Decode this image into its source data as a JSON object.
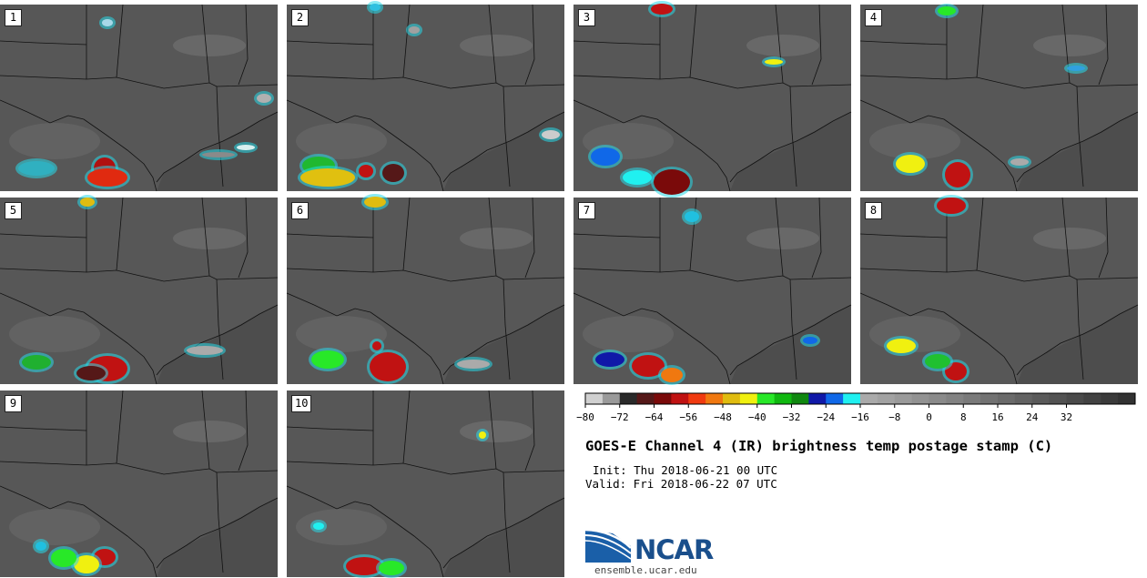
{
  "panels": [
    "1",
    "2",
    "3",
    "4",
    "5",
    "6",
    "7",
    "8",
    "9",
    "10"
  ],
  "colorbar": {
    "colors": [
      "#d0d0d0",
      "#9a9a9a",
      "#2a2a2a",
      "#551818",
      "#7a0a0a",
      "#c01212",
      "#f03a10",
      "#f07810",
      "#e0bc10",
      "#f0f010",
      "#28e828",
      "#10b810",
      "#108810",
      "#1018a8",
      "#1068e8",
      "#20f0f0",
      "#aaaaaa",
      "#a2a2a2",
      "#9a9a9a",
      "#929292",
      "#8a8a8a",
      "#828282",
      "#7a7a7a",
      "#727272",
      "#6a6a6a",
      "#626262",
      "#5a5a5a",
      "#525252",
      "#4a4a4a",
      "#424242",
      "#3a3a3a",
      "#323232"
    ],
    "ticks": [
      "−80",
      "−72",
      "−64",
      "−56",
      "−48",
      "−40",
      "−32",
      "−24",
      "−16",
      "−8",
      "0",
      "8",
      "16",
      "24",
      "32"
    ]
  },
  "title": "GOES-E Channel 4 (IR) brightness temp postage stamp (C)",
  "init_line": "Init: Thu 2018-06-21 00 UTC",
  "valid_line": "Valid: Fri 2018-06-22 07 UTC",
  "logo_text": "NCAR",
  "logo_url": "ensemble.ucar.edu"
}
